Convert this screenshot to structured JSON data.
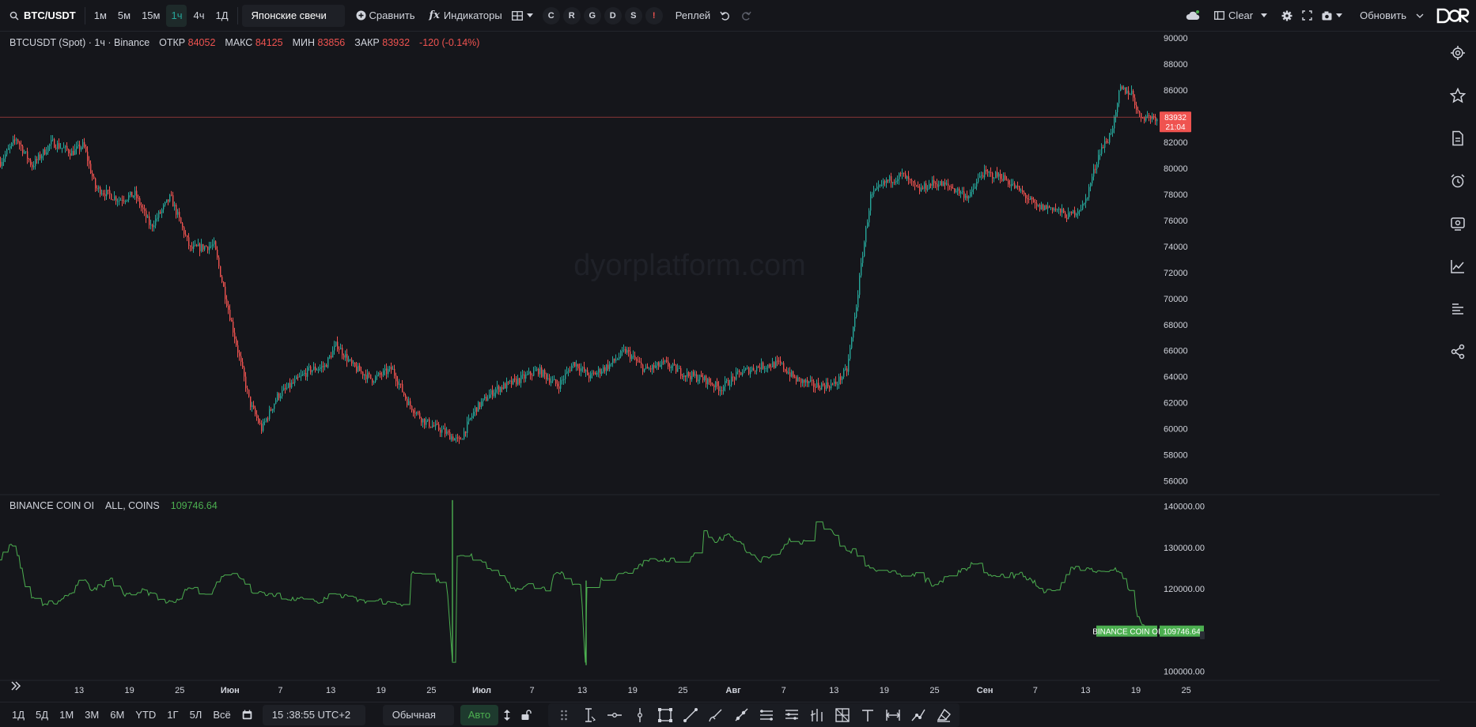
{
  "toolbar": {
    "symbol": "BTC/USDT",
    "intervals": [
      "1м",
      "5м",
      "15м",
      "1ч",
      "4ч",
      "1Д"
    ],
    "active_interval": "1ч",
    "chart_type": "Японские свечи",
    "compare": "Сравнить",
    "indicators": "Индикаторы",
    "letters": [
      "C",
      "R",
      "G",
      "D",
      "S",
      "!"
    ],
    "replay": "Реплей",
    "clear": "Clear",
    "refresh": "Обновить"
  },
  "main_legend": {
    "title": "BTCUSDT (Spot) · 1ч · Binance",
    "open_label": "ОТКР",
    "open": "84052",
    "high_label": "МАКС",
    "high": "84125",
    "low_label": "МИН",
    "low": "83856",
    "close_label": "ЗАКР",
    "close": "83932",
    "change": "-120 (-0.14%)"
  },
  "watermark": "dyorplatform.com",
  "price_axis": [
    "90000",
    "88000",
    "86000",
    "84000",
    "82000",
    "80000",
    "78000",
    "76000",
    "74000",
    "72000",
    "70000",
    "68000",
    "66000",
    "64000",
    "62000",
    "60000",
    "58000",
    "56000"
  ],
  "price_tag": {
    "price": "83932",
    "countdown": "21:04"
  },
  "oi_legend": {
    "name": "BINANCE COIN OI",
    "params": "ALL, COINS",
    "value": "109746.64"
  },
  "oi_axis": [
    "140000.00",
    "130000.00",
    "120000.00",
    "110000.00",
    "100000.00"
  ],
  "oi_tag": {
    "name": "BINANCE COIN OI",
    "value": "109746.64"
  },
  "time_axis": [
    "13",
    "19",
    "25",
    "Июн",
    "7",
    "13",
    "19",
    "25",
    "Июл",
    "7",
    "13",
    "19",
    "25",
    "Авг",
    "7",
    "13",
    "19",
    "25",
    "Сен",
    "7",
    "13",
    "19",
    "25"
  ],
  "bottom": {
    "ranges": [
      "1Д",
      "5Д",
      "1М",
      "3М",
      "6М",
      "YTD",
      "1Г",
      "5Л",
      "Всё"
    ],
    "time": "15 :38:55 UTC+2",
    "scale_mode": "Обычная",
    "auto": "Авто"
  },
  "colors": {
    "up": "#26a69a",
    "down": "#ef5350",
    "oi": "#4caf50",
    "bg": "#15161b"
  },
  "chart_data": [
    {
      "type": "candlestick",
      "title": "BTCUSDT (Spot) · 1ч · Binance",
      "ylim": [
        55000,
        90500
      ],
      "x_ticks": [
        "13",
        "19",
        "25",
        "Июн",
        "7",
        "13",
        "19",
        "25",
        "Июл",
        "7",
        "13",
        "19",
        "25",
        "Авг",
        "7",
        "13",
        "19",
        "25",
        "Сен",
        "7",
        "13",
        "19",
        "25"
      ],
      "path": [
        [
          0,
          80500
        ],
        [
          20,
          82300
        ],
        [
          40,
          80200
        ],
        [
          65,
          82000
        ],
        [
          90,
          81200
        ],
        [
          105,
          81800
        ],
        [
          120,
          78500
        ],
        [
          150,
          77600
        ],
        [
          170,
          78000
        ],
        [
          190,
          75500
        ],
        [
          215,
          77800
        ],
        [
          240,
          73800
        ],
        [
          270,
          74100
        ],
        [
          285,
          70000
        ],
        [
          300,
          66000
        ],
        [
          315,
          62000
        ],
        [
          330,
          60000
        ],
        [
          350,
          62500
        ],
        [
          370,
          63500
        ],
        [
          390,
          64500
        ],
        [
          410,
          64800
        ],
        [
          425,
          66500
        ],
        [
          445,
          64800
        ],
        [
          470,
          63800
        ],
        [
          495,
          64600
        ],
        [
          515,
          62000
        ],
        [
          535,
          60600
        ],
        [
          560,
          59800
        ],
        [
          580,
          59000
        ],
        [
          600,
          61500
        ],
        [
          625,
          63000
        ],
        [
          650,
          63600
        ],
        [
          680,
          64500
        ],
        [
          705,
          63300
        ],
        [
          725,
          65100
        ],
        [
          745,
          64000
        ],
        [
          770,
          64900
        ],
        [
          790,
          66000
        ],
        [
          815,
          64500
        ],
        [
          840,
          65000
        ],
        [
          865,
          64200
        ],
        [
          890,
          63800
        ],
        [
          910,
          63100
        ],
        [
          935,
          64300
        ],
        [
          960,
          64800
        ],
        [
          985,
          65000
        ],
        [
          1005,
          63800
        ],
        [
          1030,
          63300
        ],
        [
          1055,
          63400
        ],
        [
          1070,
          64500
        ],
        [
          1080,
          68500
        ],
        [
          1090,
          73500
        ],
        [
          1100,
          77800
        ],
        [
          1120,
          79000
        ],
        [
          1140,
          79500
        ],
        [
          1160,
          78300
        ],
        [
          1180,
          78900
        ],
        [
          1200,
          78600
        ],
        [
          1225,
          77800
        ],
        [
          1240,
          79600
        ],
        [
          1265,
          79400
        ],
        [
          1290,
          78200
        ],
        [
          1310,
          77000
        ],
        [
          1330,
          77000
        ],
        [
          1350,
          76300
        ],
        [
          1370,
          77200
        ],
        [
          1390,
          81400
        ],
        [
          1400,
          82200
        ],
        [
          1410,
          84000
        ],
        [
          1415,
          86100
        ],
        [
          1430,
          85800
        ],
        [
          1440,
          84000
        ],
        [
          1462,
          83932
        ]
      ]
    },
    {
      "type": "line",
      "name": "BINANCE COIN OI",
      "ylim": [
        98000,
        143000
      ],
      "path": [
        [
          0,
          127000
        ],
        [
          10,
          131500
        ],
        [
          20,
          129500
        ],
        [
          35,
          119000
        ],
        [
          50,
          116500
        ],
        [
          70,
          117000
        ],
        [
          90,
          119000
        ],
        [
          105,
          123000
        ],
        [
          115,
          119500
        ],
        [
          140,
          122000
        ],
        [
          160,
          118500
        ],
        [
          180,
          119500
        ],
        [
          200,
          118000
        ],
        [
          220,
          116000
        ],
        [
          240,
          121000
        ],
        [
          260,
          118000
        ],
        [
          280,
          123000
        ],
        [
          300,
          123500
        ],
        [
          320,
          119000
        ],
        [
          340,
          119000
        ],
        [
          360,
          118000
        ],
        [
          380,
          117500
        ],
        [
          400,
          116800
        ],
        [
          420,
          118500
        ],
        [
          440,
          118000
        ],
        [
          460,
          116500
        ],
        [
          480,
          117000
        ],
        [
          500,
          116000
        ],
        [
          512,
          115500
        ],
        [
          520,
          124000
        ],
        [
          535,
          123000
        ],
        [
          550,
          122000
        ],
        [
          565,
          121000
        ],
        [
          572,
          102500
        ],
        [
          572,
          141500
        ],
        [
          578,
          128500
        ],
        [
          595,
          128000
        ],
        [
          610,
          126000
        ],
        [
          630,
          124000
        ],
        [
          650,
          120000
        ],
        [
          670,
          121000
        ],
        [
          690,
          120000
        ],
        [
          705,
          124500
        ],
        [
          720,
          121500
        ],
        [
          735,
          120500
        ],
        [
          740,
          101500
        ],
        [
          742,
          120000
        ],
        [
          760,
          122500
        ],
        [
          780,
          123000
        ],
        [
          800,
          124500
        ],
        [
          820,
          127000
        ],
        [
          840,
          127000
        ],
        [
          855,
          126500
        ],
        [
          875,
          128000
        ],
        [
          890,
          133500
        ],
        [
          905,
          131500
        ],
        [
          920,
          133000
        ],
        [
          940,
          130000
        ],
        [
          960,
          127000
        ],
        [
          980,
          128000
        ],
        [
          1000,
          132000
        ],
        [
          1015,
          131000
        ],
        [
          1030,
          136500
        ],
        [
          1050,
          134000
        ],
        [
          1065,
          130000
        ],
        [
          1080,
          129000
        ],
        [
          1100,
          125000
        ],
        [
          1120,
          124500
        ],
        [
          1140,
          123000
        ],
        [
          1160,
          123500
        ],
        [
          1180,
          121000
        ],
        [
          1200,
          123000
        ],
        [
          1220,
          124500
        ],
        [
          1235,
          127000
        ],
        [
          1250,
          123000
        ],
        [
          1270,
          123000
        ],
        [
          1290,
          123500
        ],
        [
          1305,
          122000
        ],
        [
          1320,
          119500
        ],
        [
          1340,
          120000
        ],
        [
          1350,
          125000
        ],
        [
          1370,
          125000
        ],
        [
          1390,
          124000
        ],
        [
          1410,
          125000
        ],
        [
          1420,
          123000
        ],
        [
          1430,
          119000
        ],
        [
          1440,
          112000
        ],
        [
          1452,
          109746
        ]
      ]
    }
  ]
}
